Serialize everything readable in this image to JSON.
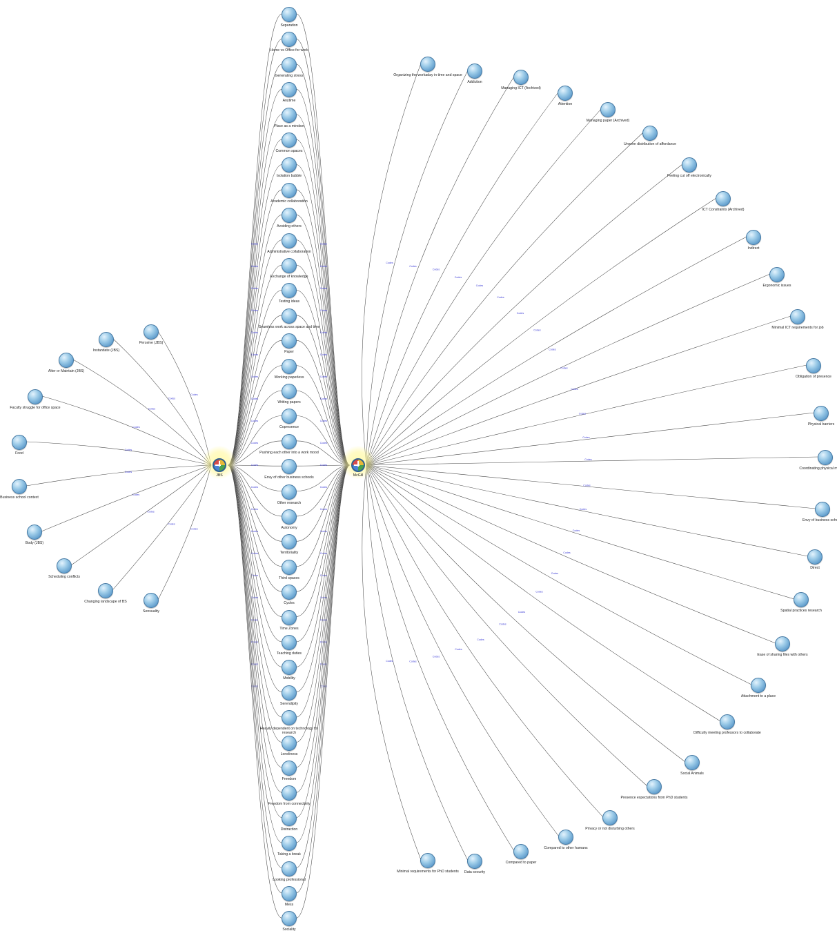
{
  "hubs": {
    "jbs": "JBS",
    "mcgill": "McGill"
  },
  "edge_label": "Codes",
  "colors": {
    "edge": "#4a4a4a",
    "edge_label": "#3b3bd6",
    "node": "#7fb4dc",
    "hub_glow": "#fff6a0"
  },
  "left_nodes": [
    "Perceive (JBS)",
    "Instantiate (JBS)",
    "Alter or Maintain (JBS)",
    "Faculty struggle for office space",
    "Food",
    "Business school context",
    "Body (JBS)",
    "Scheduling conflicts",
    "Changing landscape of BS",
    "Sensuality"
  ],
  "middle_nodes": [
    "Separation",
    "Home vs Office for work",
    "Generating stress",
    "Anytime",
    "Place as a mindset",
    "Common spaces",
    "Isolation bubble",
    "Academic collaboration",
    "Avoiding others",
    "Administrative collaboration",
    "Exchange of knowledge",
    "Testing ideas",
    "Seamless work across space and time",
    "Paper",
    "Working paperless",
    "Writing papers",
    "Copresence",
    "Pushing each other into a work mood",
    "Envy of other business schools",
    "Other research",
    "Autonomy",
    "Territoriality",
    "Third spaces",
    "Cycles",
    "Time Zones",
    "Teaching duties",
    "Mobility",
    "Serendipity",
    "Heavily dependent on technology for research",
    "Loneliness",
    "Freedom",
    "Freedom from connectivity",
    "Distraction",
    "Taking a break",
    "Looking professional",
    "Mess",
    "Sociality"
  ],
  "right_nodes": [
    "Organizing the workaday in time and space",
    "Addiction",
    "Managing ICT (Archived)",
    "Attention",
    "Managing paper (Archived)",
    "Uneven distribution of affordance",
    "Feeling cut off electronically",
    "ICT Constraints (Archived)",
    "Indirect",
    "Ergonomic issues",
    "Minimal ICT requirements for job",
    "Obligation of presence",
    "Physical barriers",
    "Coordinating physical movement",
    "Envy of business schools",
    "Direct",
    "Spatial practices research",
    "Ease of sharing files with others",
    "Attachment to a place",
    "Difficulty meeting professors to collaborate",
    "Social Animals",
    "Presence expectations from PhD students",
    "Privacy or not disturbing others",
    "Compared to other humans",
    "Compared to paper",
    "Data security",
    "Minimal requirements for PhD students"
  ]
}
